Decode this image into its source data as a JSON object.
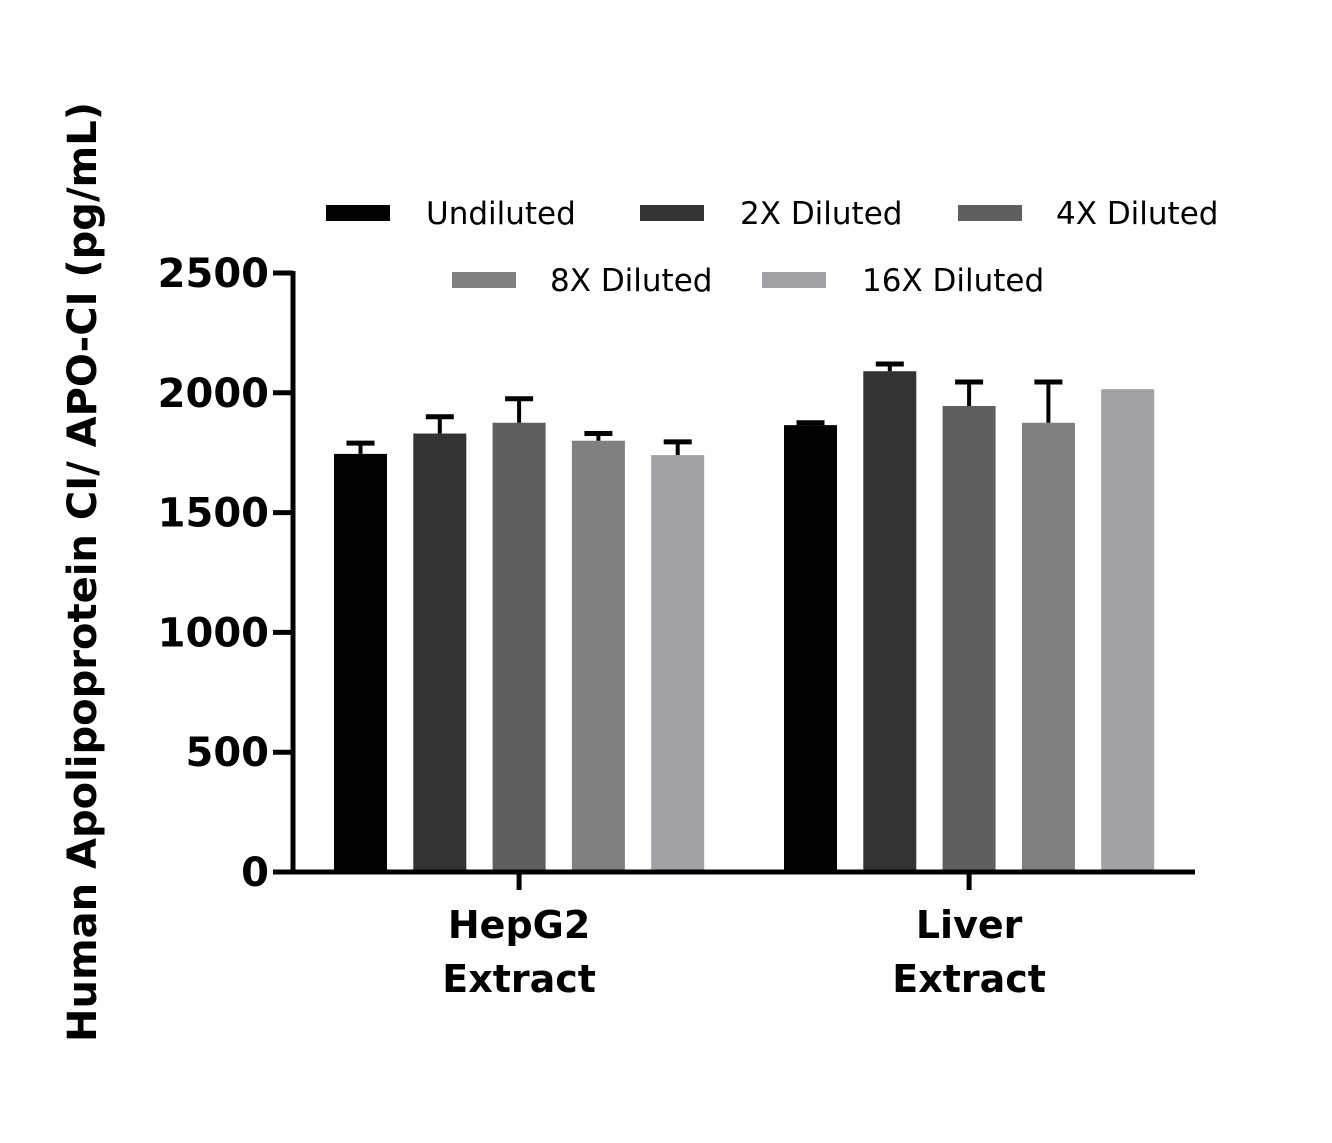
{
  "chart_data": {
    "type": "bar",
    "ylabel": "Human Apolipoprotein CI/ APO-CI (pg/mL)",
    "xlabel": "",
    "ylim": [
      0,
      2500
    ],
    "yticks": [
      0,
      500,
      1000,
      1500,
      2000,
      2500
    ],
    "categories": [
      [
        "HepG2",
        "Extract"
      ],
      [
        "Liver",
        "Extract"
      ]
    ],
    "series": [
      {
        "name": "Undiluted",
        "color": "#000000",
        "values": [
          1745,
          1865
        ],
        "errors": [
          45,
          10
        ]
      },
      {
        "name": "2X Diluted",
        "color": "#333333",
        "values": [
          1830,
          2090
        ],
        "errors": [
          70,
          30
        ]
      },
      {
        "name": "4X Diluted",
        "color": "#5f5f5f",
        "values": [
          1875,
          1945
        ],
        "errors": [
          100,
          100
        ]
      },
      {
        "name": "8X Diluted",
        "color": "#808080",
        "values": [
          1800,
          1875
        ],
        "errors": [
          30,
          170
        ]
      },
      {
        "name": "16X Diluted",
        "color": "#a2a2a6",
        "values": [
          1740,
          2015
        ],
        "errors": [
          55,
          0
        ]
      }
    ],
    "legend_position": "top",
    "grid": false
  }
}
